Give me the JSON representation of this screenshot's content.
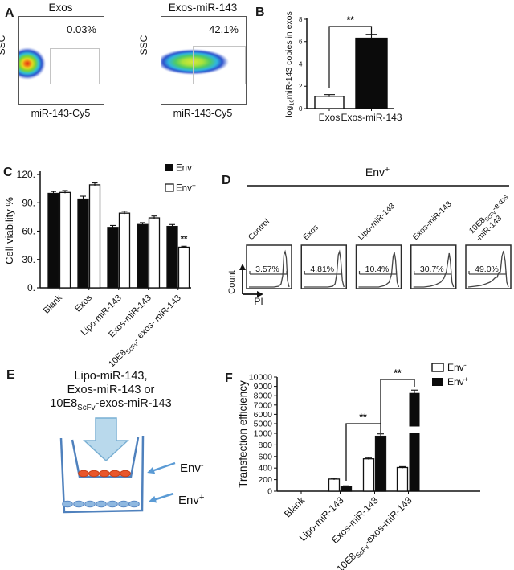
{
  "panels": {
    "A": {
      "label": "A",
      "shared_ylabel": "SSC",
      "shared_xlabel": "miR-143-Cy5",
      "plots": [
        {
          "title": "Exos",
          "gate_pct": "0.03%"
        },
        {
          "title": "Exos-miR-143",
          "gate_pct": "42.1%"
        }
      ]
    },
    "B": {
      "label": "B"
    },
    "C": {
      "label": "C"
    },
    "D": {
      "label": "D"
    },
    "E": {
      "label": "E",
      "treatment_lines": [
        "Lipo-miR-143,",
        "Exos-miR-143 or",
        "10E8_{ScFv}-exos-miR-143"
      ],
      "upper_cells_label": "Env^{-}",
      "lower_cells_label": "Env^{+}"
    },
    "F": {
      "label": "F"
    }
  },
  "chart_data": [
    {
      "panel": "B",
      "type": "bar",
      "categories": [
        "Exos",
        "Exos-miR-143"
      ],
      "values": [
        1.1,
        6.3
      ],
      "errors": [
        0.15,
        0.35
      ],
      "bar_fills": [
        "white",
        "black"
      ],
      "ylabel": "log_{10}miR-143 copies in exos",
      "yticks": [
        0,
        2,
        4,
        6,
        8
      ],
      "ylim": [
        0,
        8
      ],
      "grid": false,
      "significance": [
        {
          "from": 0,
          "to": 1,
          "label": "**"
        }
      ]
    },
    {
      "panel": "C",
      "type": "bar",
      "categories": [
        "Blank",
        "Exos",
        "Lipo-miR-143",
        "Exos-miR-143",
        "10E8_{ScFv}- exos- miR-143"
      ],
      "series": [
        {
          "name": "Env^{-}",
          "fill": "black",
          "values": [
            100,
            94,
            64,
            67,
            65
          ],
          "errors": [
            2,
            3,
            2,
            2,
            2
          ]
        },
        {
          "name": "Env^{+}",
          "fill": "white",
          "values": [
            101,
            109,
            79,
            74,
            43
          ],
          "errors": [
            2,
            2,
            2,
            2,
            1
          ]
        }
      ],
      "ylabel": "Cell viability %",
      "yticks": [
        0,
        30,
        60,
        90,
        120
      ],
      "ytick_labels": [
        "0.",
        "30.",
        "60.",
        "90.",
        "120."
      ],
      "ylim": [
        0,
        120
      ],
      "grid": false,
      "legend_position": "top-right",
      "annotations": [
        {
          "category": 4,
          "series": 1,
          "label": "**"
        }
      ]
    },
    {
      "panel": "D",
      "type": "flow-histograms",
      "header": "Env^{+}",
      "xlabel": "PI",
      "ylabel": "Count",
      "plots": [
        {
          "label_lines": [
            "Control"
          ],
          "gate_pct": "3.57%"
        },
        {
          "label_lines": [
            "Exos"
          ],
          "gate_pct": "4.81%"
        },
        {
          "label_lines": [
            "Lipo-miR-143"
          ],
          "gate_pct": "10.4%"
        },
        {
          "label_lines": [
            "Exos-miR-143"
          ],
          "gate_pct": "30.7%"
        },
        {
          "label_lines": [
            "10E8_{ScFv}-exos",
            "-miR-143"
          ],
          "gate_pct": "49.0%"
        }
      ]
    },
    {
      "panel": "F",
      "type": "bar-broken-axis",
      "categories": [
        "Blank",
        "Lipo-miR-143",
        "Exos-miR-143",
        "10E8_{ScFv}-exos-miR-143"
      ],
      "series": [
        {
          "name": "Env^{-}",
          "fill": "white",
          "values": [
            0,
            210,
            560,
            410
          ],
          "errors": [
            0,
            15,
            20,
            15
          ]
        },
        {
          "name": "Env^{+}",
          "fill": "black",
          "values": [
            0,
            85,
            950,
            8300
          ],
          "errors": [
            0,
            8,
            40,
            300
          ]
        }
      ],
      "ylabel": "Transfection efficiency",
      "yticks_lower": [
        0,
        200,
        400,
        600,
        800,
        1000
      ],
      "yticks_upper": [
        5000,
        6000,
        7000,
        8000,
        9000,
        10000
      ],
      "grid": false,
      "legend_position": "top-right",
      "significance": [
        {
          "from_category": 1,
          "to_category": 2,
          "series": 1,
          "label": "**"
        },
        {
          "from_category": 2,
          "to_category": 3,
          "series": 1,
          "label": "**"
        }
      ]
    }
  ]
}
